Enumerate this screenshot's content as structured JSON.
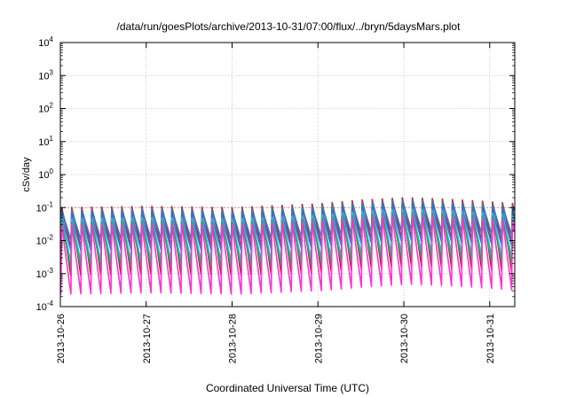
{
  "chart_data": {
    "type": "line",
    "title": "/data/run/goesPlots/archive/2013-10-31/07:00/flux/../bryn/5daysMars.plot",
    "xlabel": "Coordinated Universal Time (UTC)",
    "ylabel": "cSv/day",
    "yscale": "log",
    "ylim": [
      0.0001,
      10000
    ],
    "xlim": [
      "2013-10-26T00:00",
      "2013-10-31T07:00"
    ],
    "grid": true,
    "legend": "none",
    "x_tick_labels": [
      "2013-10-26",
      "2013-10-27",
      "2013-10-28",
      "2013-10-29",
      "2013-10-30",
      "2013-10-31"
    ],
    "y_tick_labels": [
      {
        "base": "10",
        "exp": "-4"
      },
      {
        "base": "10",
        "exp": "-3"
      },
      {
        "base": "10",
        "exp": "-2"
      },
      {
        "base": "10",
        "exp": "-1"
      },
      {
        "base": "10",
        "exp": "0"
      },
      {
        "base": "10",
        "exp": "1"
      },
      {
        "base": "10",
        "exp": "2"
      },
      {
        "base": "10",
        "exp": "3"
      },
      {
        "base": "10",
        "exp": "4"
      }
    ],
    "series_pattern": {
      "description_hidden": true,
      "cycle_hours": 2.8,
      "cycles_per_day": 8.5,
      "peak_envelope_days": [
        0,
        1,
        2,
        3,
        3.5,
        4,
        4.5,
        5,
        5.3
      ],
      "peak_envelope_values": [
        0.1,
        0.11,
        0.1,
        0.13,
        0.17,
        0.2,
        0.18,
        0.15,
        0.13
      ]
    },
    "series": [
      {
        "color": "#e41a1c",
        "peak_factor": 1.0,
        "trough_factor": 0.06
      },
      {
        "color": "#b2182b",
        "peak_factor": 0.7,
        "trough_factor": 0.012
      },
      {
        "color": "#2c7fb8",
        "peak_factor": 0.85,
        "trough_factor": 0.12
      },
      {
        "color": "#1f78ff",
        "peak_factor": 0.55,
        "trough_factor": 0.09
      },
      {
        "color": "#41b6c4",
        "peak_factor": 0.45,
        "trough_factor": 0.05
      },
      {
        "color": "#2ca25f",
        "peak_factor": 0.35,
        "trough_factor": 0.04
      },
      {
        "color": "#ff33cc",
        "peak_factor": 0.3,
        "trough_factor": 0.008
      }
    ],
    "reference_line": {
      "value": 0.1,
      "color": "#ff8080"
    }
  }
}
